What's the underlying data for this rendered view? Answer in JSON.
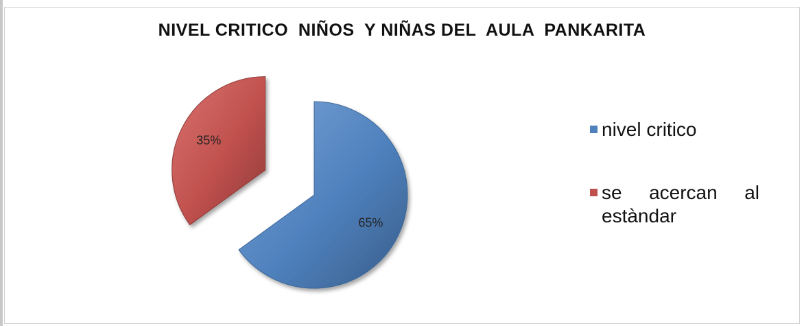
{
  "chart_data": {
    "type": "pie",
    "title": "NIVEL CRITICO  NIÑOS  Y NIÑAS DEL  AULA  PANKARITA",
    "categories": [
      "nivel critico",
      "se acercan al estàndar"
    ],
    "values": [
      65,
      35
    ],
    "data_labels": [
      "65%",
      "35%"
    ],
    "colors": [
      "#4f81bd",
      "#c0504d"
    ],
    "exploded": "se acercan al estàndar",
    "legend_position": "right"
  }
}
